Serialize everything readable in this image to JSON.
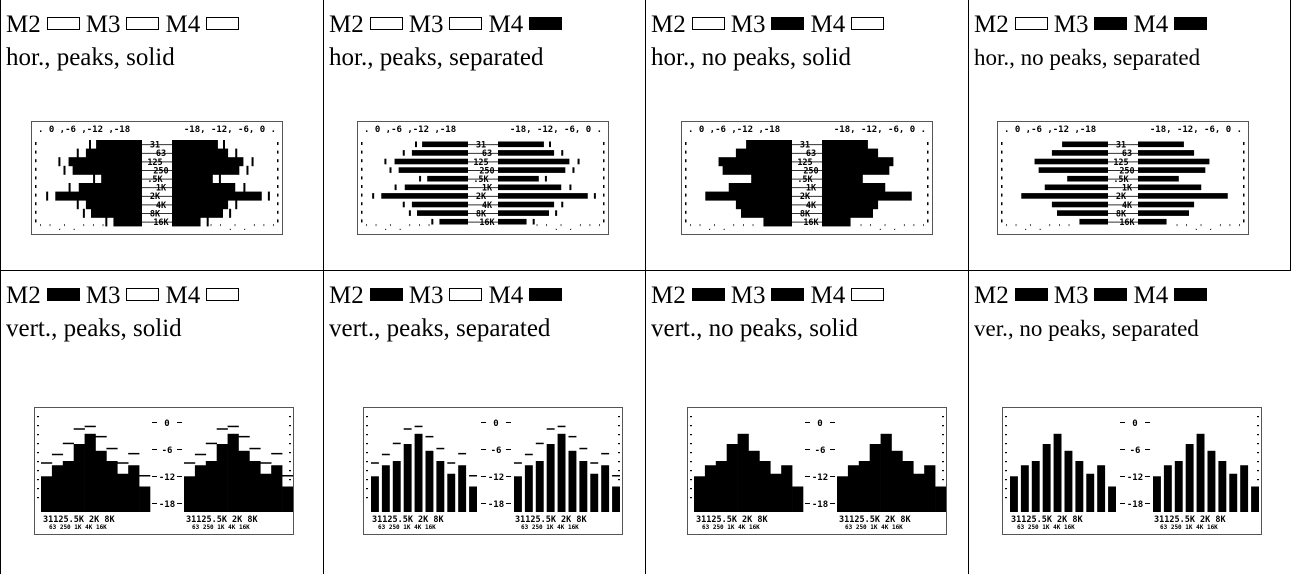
{
  "cells": [
    {
      "label_m2": "M2",
      "label_m3": "M3",
      "label_m4": "M4",
      "m2": false,
      "m3": false,
      "m4": false,
      "orientation": "horizontal",
      "peaks": true,
      "separated": false,
      "description": "hor., peaks,  solid"
    },
    {
      "label_m2": "M2",
      "label_m3": "M3",
      "label_m4": "M4",
      "m2": false,
      "m3": false,
      "m4": true,
      "orientation": "horizontal",
      "peaks": true,
      "separated": true,
      "description": "hor., peaks,  separated"
    },
    {
      "label_m2": "M2",
      "label_m3": "M3",
      "label_m4": "M4",
      "m2": false,
      "m3": true,
      "m4": false,
      "orientation": "horizontal",
      "peaks": false,
      "separated": false,
      "description": "hor., no peaks,  solid"
    },
    {
      "label_m2": "M2",
      "label_m3": "M3",
      "label_m4": "M4",
      "m2": false,
      "m3": true,
      "m4": true,
      "orientation": "horizontal",
      "peaks": false,
      "separated": true,
      "description": "hor., no peaks,  separated"
    },
    {
      "label_m2": "M2",
      "label_m3": "M3",
      "label_m4": "M4",
      "m2": true,
      "m3": false,
      "m4": false,
      "orientation": "vertical",
      "peaks": true,
      "separated": false,
      "description": "vert., peaks,  solid"
    },
    {
      "label_m2": "M2",
      "label_m3": "M3",
      "label_m4": "M4",
      "m2": true,
      "m3": false,
      "m4": true,
      "orientation": "vertical",
      "peaks": true,
      "separated": true,
      "description": "vert., peaks,  separated"
    },
    {
      "label_m2": "M2",
      "label_m3": "M3",
      "label_m4": "M4",
      "m2": true,
      "m3": true,
      "m4": false,
      "orientation": "vertical",
      "peaks": false,
      "separated": false,
      "description": "vert., no peaks,  solid"
    },
    {
      "label_m2": "M2",
      "label_m3": "M3",
      "label_m4": "M4",
      "m2": true,
      "m3": true,
      "m4": true,
      "orientation": "vertical",
      "peaks": false,
      "separated": true,
      "description": "ver., no peaks,  separated"
    }
  ],
  "display": {
    "db_scale": [
      "0",
      "-6",
      "-12",
      "-18"
    ],
    "freq_labels": [
      "31",
      "63",
      "125",
      "250",
      ".5K",
      "1K",
      "2K",
      "4K",
      "8K",
      "16K"
    ],
    "vert_freq_labels_top": "31125.5K 2K 8K",
    "vert_freq_labels_bottom": "63 250 1K 4K 16K",
    "levels_left": [
      0.45,
      0.55,
      0.72,
      0.68,
      0.4,
      0.62,
      0.85,
      0.55,
      0.5,
      0.28
    ],
    "levels_right": [
      0.45,
      0.55,
      0.7,
      0.66,
      0.4,
      0.62,
      0.88,
      0.55,
      0.5,
      0.28
    ],
    "peaks_left": [
      0.5,
      0.62,
      0.8,
      0.75,
      0.46,
      0.7,
      0.92,
      0.62,
      0.56,
      0.34
    ],
    "peaks_right": [
      0.5,
      0.62,
      0.78,
      0.73,
      0.46,
      0.7,
      0.94,
      0.62,
      0.56,
      0.34
    ],
    "vert_levels_left": [
      0.42,
      0.55,
      0.6,
      0.8,
      0.92,
      0.72,
      0.6,
      0.45,
      0.55,
      0.3
    ],
    "vert_levels_right": [
      0.42,
      0.55,
      0.6,
      0.8,
      0.92,
      0.72,
      0.6,
      0.45,
      0.55,
      0.3
    ],
    "vert_peaks_left": [
      0.55,
      0.65,
      0.78,
      0.95,
      0.98,
      0.86,
      0.72,
      0.55,
      0.66,
      0.4
    ],
    "vert_peaks_right": [
      0.55,
      0.65,
      0.78,
      0.95,
      0.98,
      0.86,
      0.72,
      0.55,
      0.66,
      0.4
    ]
  }
}
